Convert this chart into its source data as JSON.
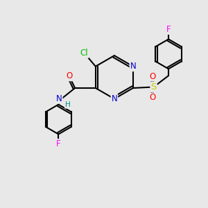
{
  "background_color": "#e8e8e8",
  "bond_color": "#000000",
  "bond_width": 1.5,
  "atom_colors": {
    "C": "#000000",
    "N": "#0000cc",
    "O": "#ff0000",
    "S": "#cccc00",
    "Cl": "#00bb00",
    "F": "#ff00ff",
    "H": "#008888"
  },
  "font_size": 8.5,
  "fig_size": [
    3.0,
    3.0
  ],
  "dpi": 100
}
